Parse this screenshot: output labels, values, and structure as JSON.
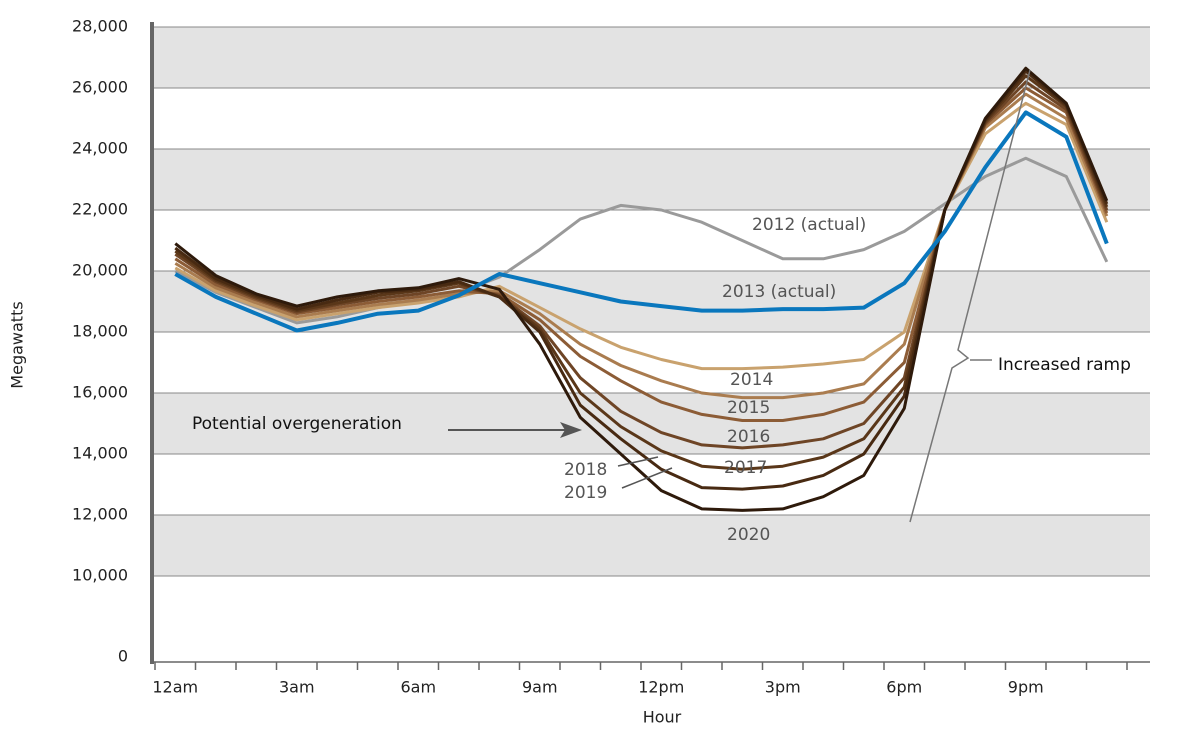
{
  "chart_data": {
    "type": "line",
    "x_label": "Hour",
    "y_label": "Megawatts",
    "categories": [
      "12am",
      null,
      null,
      "3am",
      null,
      null,
      "6am",
      null,
      null,
      "9am",
      null,
      null,
      "12pm",
      null,
      null,
      "3pm",
      null,
      null,
      "6pm",
      null,
      null,
      "9pm",
      null,
      null
    ],
    "ylim": [
      0,
      28000
    ],
    "yticks": [
      0,
      {
        "value": 10000,
        "label": "10,000"
      },
      {
        "value": 12000,
        "label": "12,000"
      },
      {
        "value": 14000,
        "label": "14,000"
      },
      {
        "value": 16000,
        "label": "16,000"
      },
      {
        "value": 18000,
        "label": "18,000"
      },
      {
        "value": 20000,
        "label": "20,000"
      },
      {
        "value": 22000,
        "label": "22,000"
      },
      {
        "value": 24000,
        "label": "24,000"
      },
      {
        "value": 26000,
        "label": "26,000"
      },
      {
        "value": 28000,
        "label": "28,000"
      }
    ],
    "band_color": "#e3e3e3",
    "series": [
      {
        "name": "2012 (actual)",
        "color": "#9a9a9a",
        "values": [
          20000,
          19300,
          18800,
          18300,
          18500,
          18800,
          19000,
          19300,
          19800,
          20700,
          21700,
          22150,
          22000,
          21600,
          21000,
          20400,
          20400,
          20700,
          21300,
          22200,
          23100,
          23700,
          23100,
          20300
        ]
      },
      {
        "name": "2014",
        "color": "#c9a26e",
        "values": [
          20100,
          19350,
          18850,
          18400,
          18600,
          18800,
          18950,
          19150,
          19500,
          18800,
          18100,
          17500,
          17100,
          16800,
          16800,
          16850,
          16950,
          17100,
          18000,
          22000,
          24500,
          25500,
          24800,
          21600
        ]
      },
      {
        "name": "2015",
        "color": "#aa7c4f",
        "values": [
          20250,
          19450,
          18950,
          18500,
          18700,
          18900,
          19050,
          19250,
          19350,
          18600,
          17600,
          16900,
          16400,
          16000,
          15850,
          15850,
          16000,
          16300,
          17600,
          22000,
          24700,
          25800,
          25000,
          21800
        ]
      },
      {
        "name": "2016",
        "color": "#8c5c36",
        "values": [
          20400,
          19550,
          19050,
          18600,
          18800,
          19000,
          19150,
          19350,
          19250,
          18400,
          17200,
          16400,
          15700,
          15300,
          15100,
          15100,
          15300,
          15700,
          17000,
          22000,
          24800,
          26000,
          25200,
          21900
        ]
      },
      {
        "name": "2017",
        "color": "#6e4526",
        "values": [
          20550,
          19650,
          19100,
          18650,
          18900,
          19100,
          19250,
          19500,
          19200,
          18200,
          16500,
          15400,
          14700,
          14300,
          14200,
          14300,
          14500,
          15000,
          16500,
          22000,
          24850,
          26200,
          25300,
          22000
        ]
      },
      {
        "name": "2018",
        "color": "#5a3719",
        "values": [
          20650,
          19700,
          19150,
          18700,
          18950,
          19200,
          19350,
          19600,
          19150,
          18100,
          16000,
          14900,
          14100,
          13600,
          13500,
          13600,
          13900,
          14500,
          16200,
          22000,
          24900,
          26400,
          25400,
          22100
        ]
      },
      {
        "name": "2019",
        "color": "#482a12",
        "values": [
          20750,
          19750,
          19200,
          18750,
          19050,
          19300,
          19400,
          19650,
          19150,
          18000,
          15600,
          14500,
          13500,
          12900,
          12850,
          12950,
          13300,
          14000,
          15900,
          22000,
          24950,
          26550,
          25450,
          22200
        ]
      },
      {
        "name": "2020",
        "color": "#2e1a0b",
        "values": [
          20900,
          19850,
          19250,
          18850,
          19150,
          19350,
          19450,
          19750,
          19400,
          17600,
          15200,
          14000,
          12800,
          12200,
          12150,
          12200,
          12600,
          13300,
          15500,
          22000,
          25000,
          26650,
          25500,
          22300
        ]
      },
      {
        "name": "2013 (actual)",
        "color": "#0a77bd",
        "values": [
          19900,
          19150,
          18600,
          18050,
          18300,
          18600,
          18700,
          19200,
          19900,
          19600,
          19300,
          19000,
          18850,
          18700,
          18700,
          18750,
          18750,
          18800,
          19600,
          21300,
          23400,
          25200,
          24400,
          20900
        ]
      }
    ],
    "annotations": [
      "Potential overgeneration",
      "Increased ramp"
    ]
  }
}
